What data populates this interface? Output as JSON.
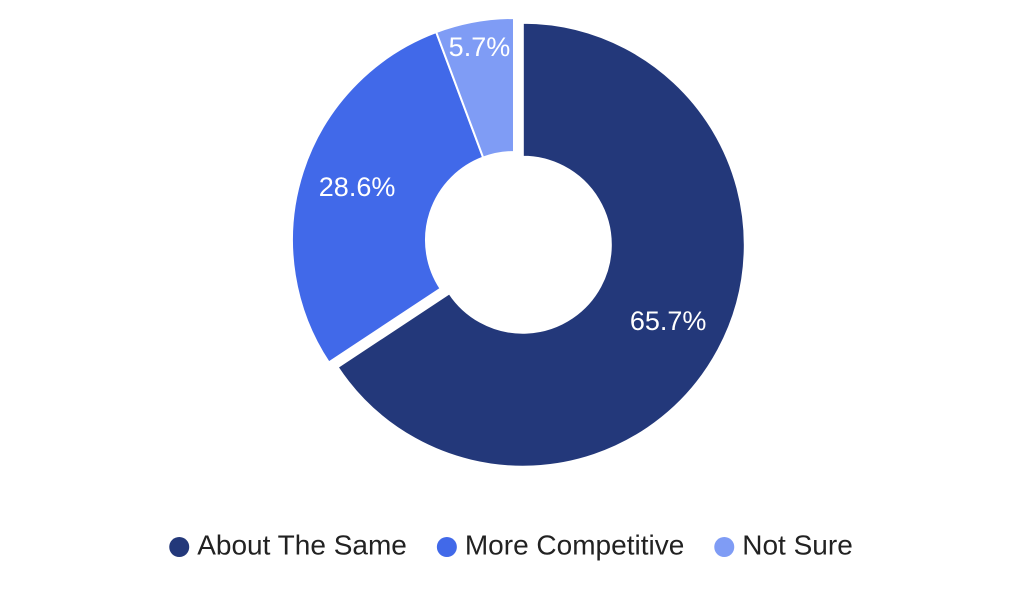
{
  "chart_data": {
    "type": "donut",
    "categories": [
      "About The Same",
      "More Competitive",
      "Not Sure"
    ],
    "values": [
      65.7,
      28.6,
      5.7
    ],
    "value_labels": [
      "65.7%",
      "28.6%",
      "5.7%"
    ],
    "colors": [
      "#23387a",
      "#4169e9",
      "#7f9cf5"
    ],
    "legend": "bottom"
  }
}
